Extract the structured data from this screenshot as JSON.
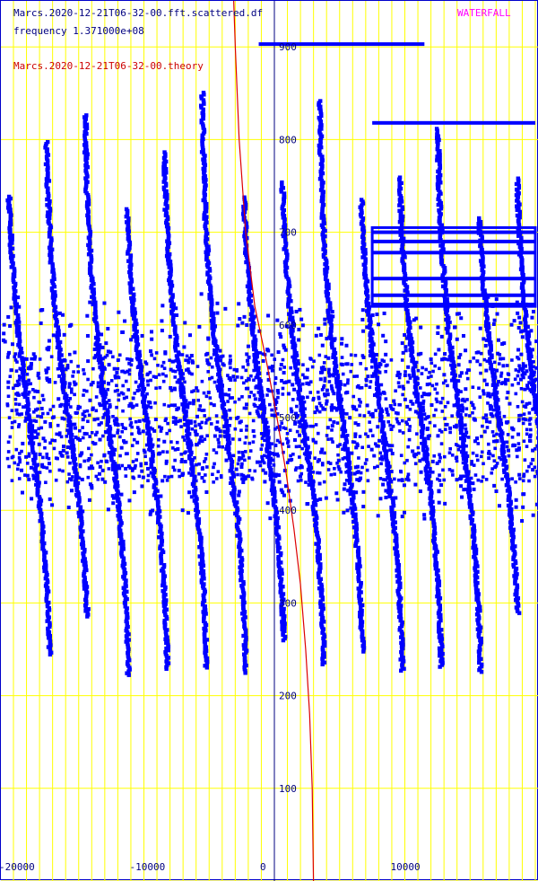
{
  "header": {
    "data_file": "Marcs.2020-12-21T06-32-00.fft.scattered.df",
    "frequency": "frequency 1.371000e+08",
    "theory_file": "Marcs.2020-12-21T06-32-00.theory",
    "mode": "WATERFALL"
  },
  "colors": {
    "background": "#ffffff",
    "grid": "#ffff00",
    "data": "#0000ff",
    "theory": "#dd0000",
    "axis_text": "#000080",
    "mode_text": "#ff00ff"
  },
  "chart_data": {
    "type": "scatter",
    "xlim": [
      -20500,
      20000
    ],
    "ylim": [
      0,
      985
    ],
    "x_ticks": [
      -20000,
      -10000,
      0,
      10000
    ],
    "x_tick_labels": [
      "-20000",
      "-10000",
      "0",
      "10000"
    ],
    "y_ticks": [
      100,
      200,
      300,
      400,
      500,
      600,
      700,
      800,
      900
    ],
    "y_tick_labels": [
      "100",
      "200",
      "300",
      "400",
      "500",
      "600",
      "700",
      "800",
      "900"
    ],
    "grid": true,
    "scatter_stripes": {
      "curve_offsets_x": [
        -20000,
        -17000,
        -14000,
        -11000,
        -8000,
        -5000,
        -2000,
        1000,
        4000,
        7000,
        10000,
        13000,
        16000,
        19000
      ],
      "curve_y_range": [
        200,
        800
      ],
      "note_band_y": [
        420,
        560
      ]
    },
    "horizontal_blocks": [
      {
        "x": [
          -1200,
          11500
        ],
        "y": 903
      },
      {
        "x": [
          7500,
          20000
        ],
        "y": 818
      },
      {
        "x": [
          7500,
          20000
        ],
        "y": 700
      },
      {
        "x": [
          7500,
          20000
        ],
        "y": 690
      },
      {
        "x": [
          7500,
          20000
        ],
        "y": 678
      },
      {
        "x": [
          7500,
          20000
        ],
        "y": 650
      },
      {
        "x": [
          7500,
          20000
        ],
        "y": 632
      },
      {
        "x": [
          7500,
          20000
        ],
        "y": 622
      }
    ],
    "theory_curve": {
      "x": [
        -3200,
        -3000,
        -2700,
        -2200,
        -1500,
        -600,
        200,
        900,
        1500,
        2000,
        2400,
        2700,
        2900,
        3000
      ],
      "y": [
        985,
        900,
        800,
        700,
        620,
        560,
        500,
        440,
        380,
        320,
        250,
        180,
        100,
        0
      ]
    }
  }
}
